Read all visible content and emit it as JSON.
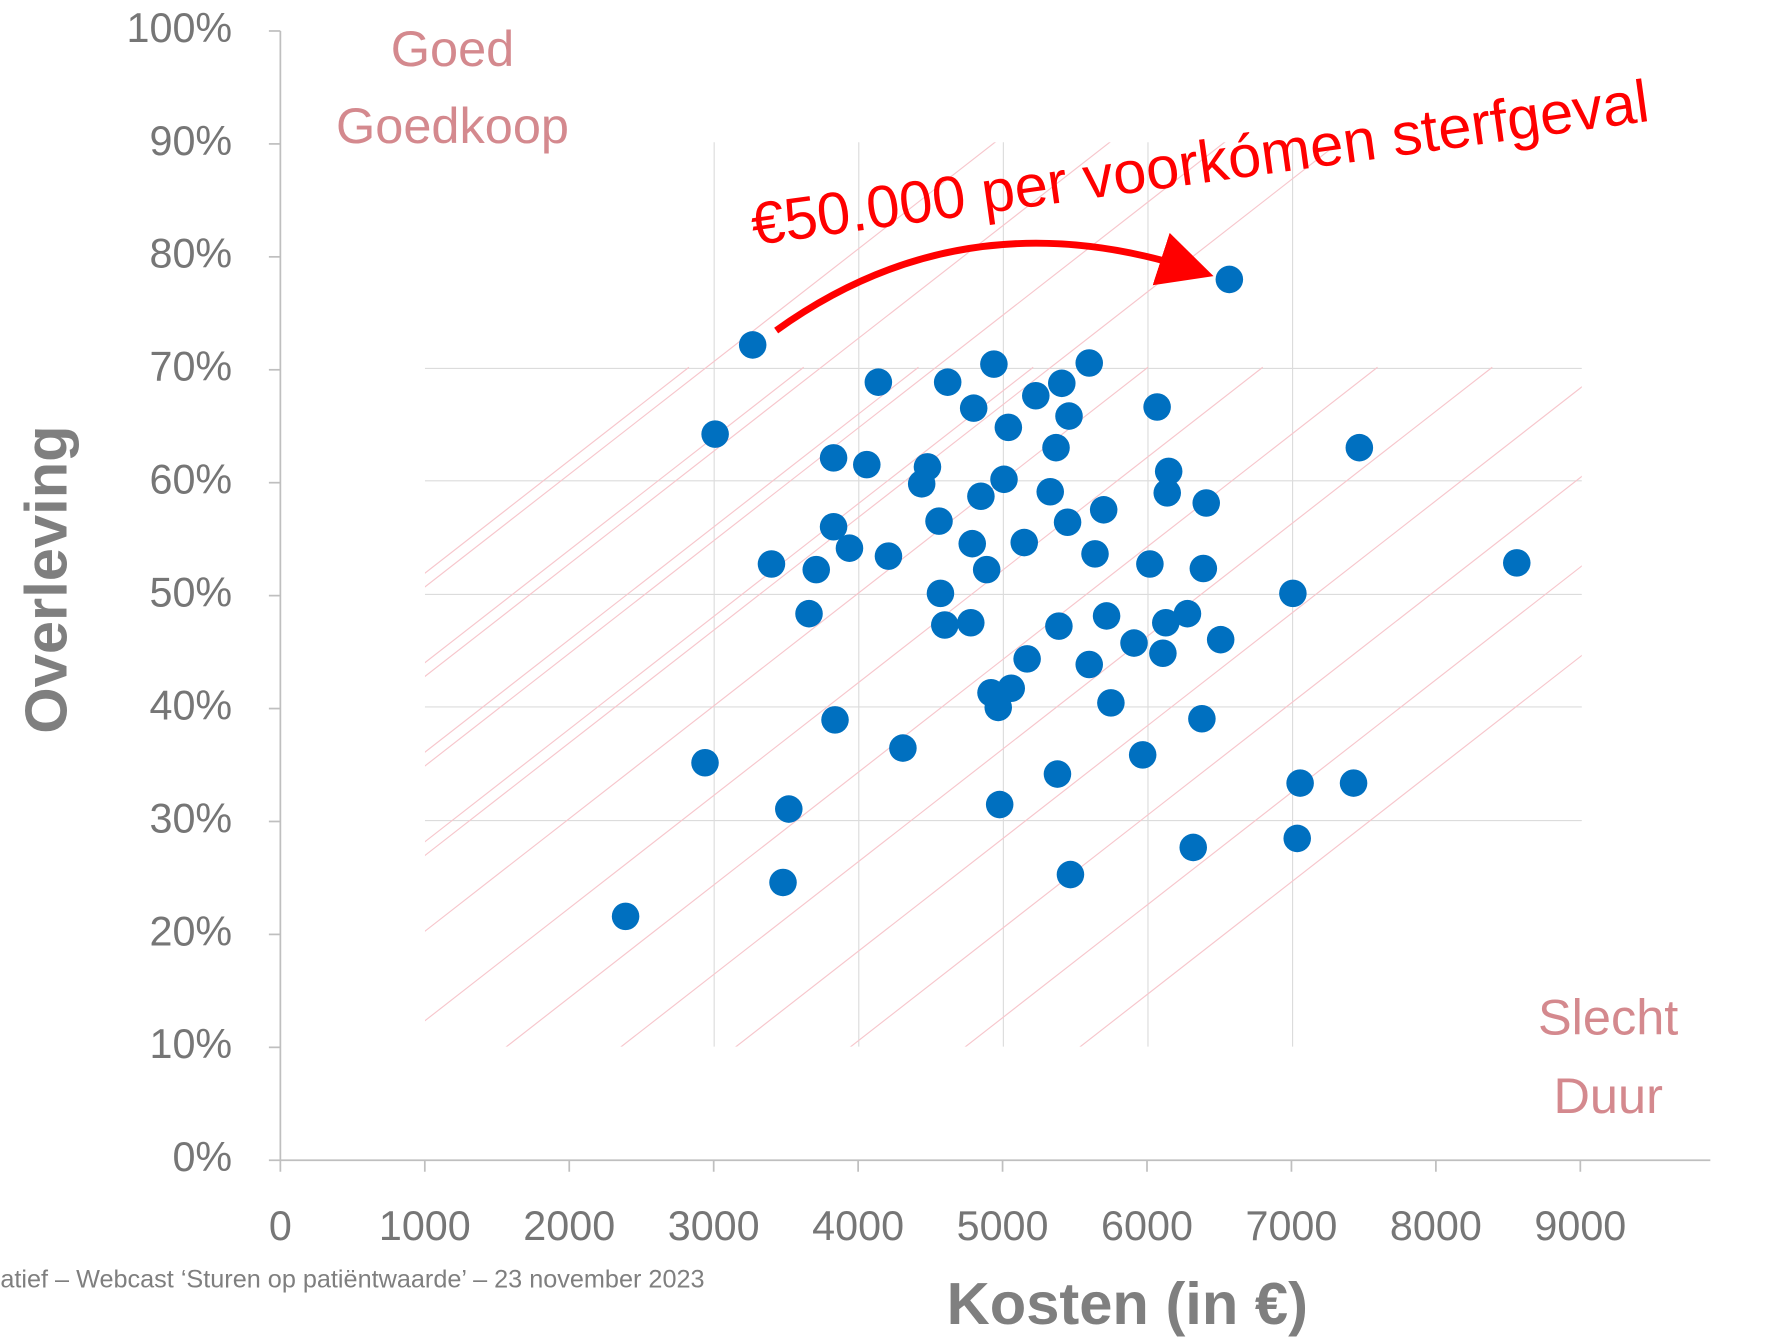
{
  "chart_data": {
    "type": "scatter",
    "x_label": "Kosten (in €)",
    "y_label": "Overleving",
    "annotations": {
      "top_left": [
        "Goed",
        "Goedkoop"
      ],
      "bottom_right": [
        "Slecht",
        "Duur"
      ],
      "arrow": "€50.000 per voorkómen sterfgeval"
    },
    "footer": "atief – Webcast ‘Sturen op patiëntwaarde’ – 23 november 2023",
    "color": "#0070c0",
    "xlim": [
      0,
      9900
    ],
    "ylim": [
      0,
      100
    ],
    "xticks": [
      0,
      1000,
      2000,
      3000,
      4000,
      5000,
      6000,
      7000,
      8000,
      9000
    ],
    "yticks": [
      {
        "value": 0,
        "label": "0%"
      },
      {
        "value": 10,
        "label": "10%"
      },
      {
        "value": 20,
        "label": "20%"
      },
      {
        "value": 30,
        "label": "30%"
      },
      {
        "value": 40,
        "label": "40%"
      },
      {
        "value": 50,
        "label": "50%"
      },
      {
        "value": 60,
        "label": "60%"
      },
      {
        "value": 70,
        "label": "70%"
      },
      {
        "value": 80,
        "label": "80%"
      },
      {
        "value": 90,
        "label": "90%"
      },
      {
        "value": 100,
        "label": "100%"
      }
    ],
    "x": [
      2390,
      2940,
      3010,
      3270,
      3400,
      3480,
      3520,
      3660,
      3710,
      3830,
      3830,
      3840,
      3940,
      4060,
      4140,
      4210,
      4310,
      4440,
      4480,
      4560,
      4570,
      4600,
      4620,
      4780,
      4790,
      4800,
      4850,
      4890,
      4920,
      4940,
      4970,
      4980,
      5010,
      5040,
      5060,
      5150,
      5170,
      5230,
      5330,
      5370,
      5380,
      5390,
      5410,
      5450,
      5460,
      5470,
      5600,
      5600,
      5640,
      5700,
      5720,
      5750,
      5910,
      5970,
      6020,
      6070,
      6130,
      6140,
      6150,
      6110,
      6280,
      6320,
      6380,
      6390,
      6410,
      6510,
      6570,
      7010,
      7040,
      7060,
      7430,
      7470,
      8560
    ],
    "y": [
      21.6,
      35.2,
      64.3,
      72.2,
      52.8,
      24.6,
      31.1,
      48.4,
      52.3,
      62.2,
      56.1,
      39.0,
      54.2,
      61.6,
      68.9,
      53.5,
      36.5,
      59.9,
      61.4,
      56.6,
      50.2,
      47.4,
      68.9,
      47.6,
      54.6,
      66.6,
      58.8,
      52.3,
      41.4,
      70.5,
      40.1,
      31.5,
      60.3,
      64.9,
      41.8,
      54.7,
      44.4,
      67.7,
      59.2,
      63.1,
      34.2,
      47.3,
      68.8,
      56.5,
      65.9,
      25.3,
      70.6,
      43.9,
      53.7,
      57.6,
      48.2,
      40.5,
      45.8,
      35.9,
      52.8,
      66.7,
      47.6,
      59.1,
      61.0,
      44.9,
      48.4,
      27.7,
      39.1,
      52.4,
      58.2,
      46.1,
      78.0,
      50.2,
      28.5,
      33.4,
      33.4,
      63.1,
      52.9
    ]
  }
}
